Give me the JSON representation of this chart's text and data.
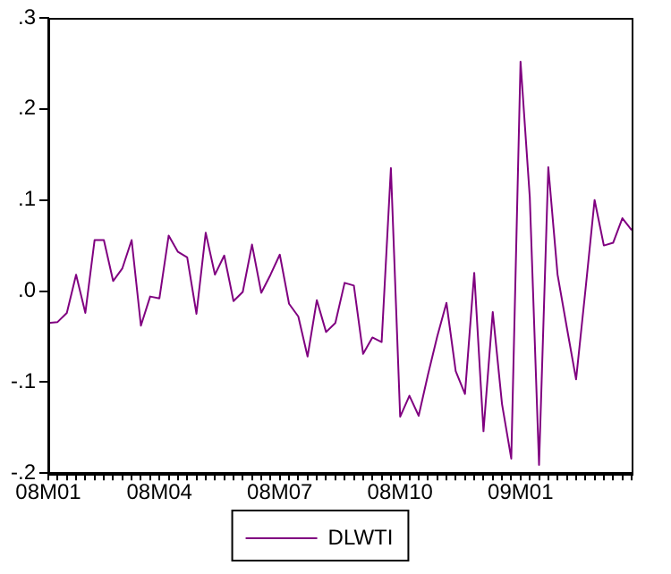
{
  "chart_data": {
    "type": "line",
    "categories": [
      "08M01",
      null,
      null,
      null,
      null,
      null,
      null,
      null,
      null,
      null,
      null,
      null,
      "08M04",
      null,
      null,
      null,
      null,
      null,
      null,
      null,
      null,
      null,
      null,
      null,
      null,
      "08M07",
      null,
      null,
      null,
      null,
      null,
      null,
      null,
      null,
      null,
      null,
      null,
      null,
      "08M10",
      null,
      null,
      null,
      null,
      null,
      null,
      null,
      null,
      null,
      null,
      null,
      null,
      "09M01",
      null,
      null,
      null,
      null,
      null,
      null,
      null,
      null,
      null,
      null,
      null,
      null
    ],
    "series": [
      {
        "name": "DLWTI",
        "color": "#800080",
        "values": [
          -0.035,
          -0.034,
          -0.024,
          0.018,
          -0.024,
          0.056,
          0.056,
          0.011,
          0.025,
          0.056,
          -0.038,
          -0.006,
          -0.008,
          0.061,
          0.043,
          0.037,
          -0.025,
          0.064,
          0.018,
          0.039,
          -0.011,
          -0.001,
          0.051,
          -0.002,
          0.018,
          0.04,
          -0.014,
          -0.028,
          -0.072,
          -0.01,
          -0.045,
          -0.035,
          0.009,
          0.006,
          -0.069,
          -0.051,
          -0.056,
          0.135,
          -0.138,
          -0.115,
          -0.137,
          -0.092,
          -0.05,
          -0.013,
          -0.088,
          -0.113,
          0.02,
          -0.154,
          -0.023,
          -0.124,
          -0.184,
          0.252,
          0.103,
          -0.191,
          0.136,
          0.018,
          -0.04,
          -0.097,
          0.0,
          0.1,
          0.05,
          0.053,
          0.08,
          0.067
        ]
      }
    ],
    "ylim": [
      -0.2,
      0.3
    ],
    "yticks": [
      {
        "value": -0.2,
        "label": "-.2"
      },
      {
        "value": -0.1,
        "label": "-.1"
      },
      {
        "value": 0,
        "label": ".0"
      },
      {
        "value": 0.1,
        "label": ".1"
      },
      {
        "value": 0.2,
        "label": ".2"
      },
      {
        "value": 0.3,
        "label": ".3"
      }
    ],
    "grid": false,
    "legend": "bottom",
    "marker": "none",
    "line_style": "solid"
  }
}
